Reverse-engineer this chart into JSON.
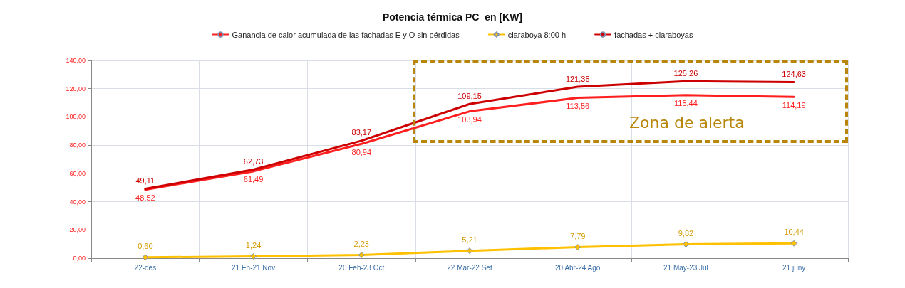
{
  "chart_data": {
    "type": "line",
    "title": "Potencia térmica PC  en [KW]",
    "categories": [
      "22-des",
      "21 En-21 Nov",
      "20 Feb-23 Oct",
      "22 Mar-22 Set",
      "20 Abr-24 Ago",
      "21 May-23 Jul",
      "21 juny"
    ],
    "series": [
      {
        "name": "Ganancia de calor acumulada de las fachadas E y O sin pérdidas",
        "color": "#ff1f1f",
        "marker": "none",
        "values": [
          48.52,
          61.49,
          80.94,
          103.94,
          113.56,
          115.44,
          114.19
        ],
        "value_labels": [
          "48,52",
          "61,49",
          "80,94",
          "103,94",
          "113,56",
          "115,44",
          "114,19"
        ]
      },
      {
        "name": "claraboya 8:00 h",
        "color": "#ffc000",
        "marker": "diamond",
        "values": [
          0.6,
          1.24,
          2.23,
          5.21,
          7.79,
          9.82,
          10.44
        ],
        "value_labels": [
          "0,60",
          "1,24",
          "2,23",
          "5,21",
          "7,79",
          "9,82",
          "10,44"
        ]
      },
      {
        "name": "fachadas + claraboyas",
        "color": "#cc0000",
        "marker": "none",
        "values": [
          49.11,
          62.73,
          83.17,
          109.15,
          121.35,
          125.26,
          124.63
        ],
        "value_labels": [
          "49,11",
          "62,73",
          "83,17",
          "109,15",
          "121,35",
          "125,26",
          "124,63"
        ]
      }
    ],
    "ylim": [
      0,
      140
    ],
    "yticks": [
      {
        "value": 0,
        "label": "0,00"
      },
      {
        "value": 20,
        "label": "20,00"
      },
      {
        "value": 40,
        "label": "40,00"
      },
      {
        "value": 60,
        "label": "60,00"
      },
      {
        "value": 80,
        "label": "80,00"
      },
      {
        "value": 100,
        "label": "100,00"
      },
      {
        "value": 120,
        "label": "120,00"
      },
      {
        "value": 140,
        "label": "140,00"
      }
    ],
    "grid": true,
    "legend": "top",
    "line_style": "solid",
    "annotations": [
      "Zona de alerta"
    ]
  }
}
